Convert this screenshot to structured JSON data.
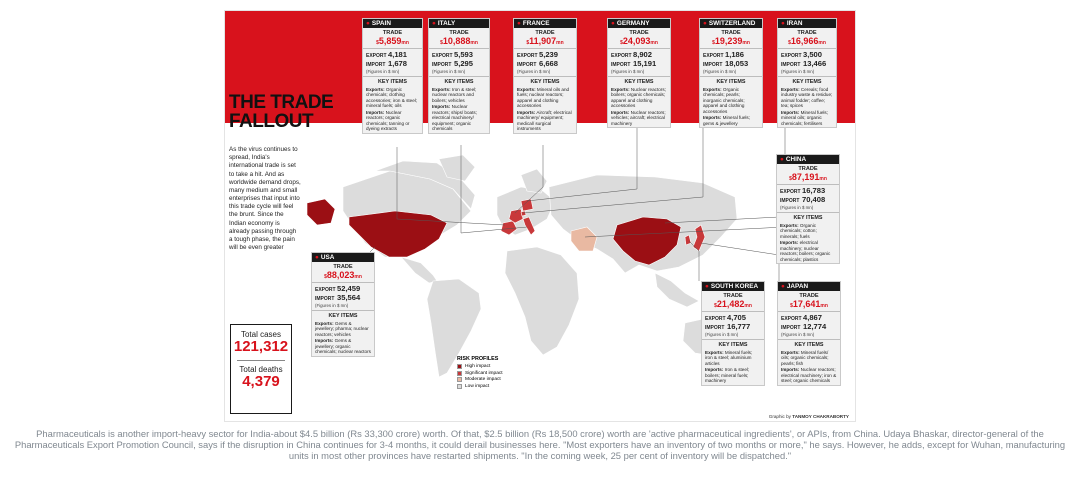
{
  "title": "THE TRADE FALLOUT",
  "intro": "As the virus continues to spread, India's international trade is set to take a hit. And as worldwide demand drops, many medium and small enterprises that input into this trade cycle will feel the brunt. Since the Indian economy is already passing through a tough phase, the pain will be even greater",
  "cases": {
    "total_cases_label": "Total cases",
    "total_cases": "121,312",
    "total_deaths_label": "Total deaths",
    "total_deaths": "4,379"
  },
  "labels": {
    "trade": "TRADE",
    "export": "EXPORT",
    "import": "IMPORT",
    "figures": "(Figures in $ mn)",
    "key_items": "KEY ITEMS",
    "exports": "Exports:",
    "imports": "Imports:",
    "unit": "mn",
    "currency": "$"
  },
  "countries": [
    {
      "name": "SPAIN",
      "trade": "5,859",
      "export": "4,181",
      "import": "1,678",
      "exports": "Organic chemicals; clothing accessories; iron & steel; mineral fuels; oils",
      "imports": "Nuclear reactors; organic chemicals; tanning or dyeing extracts"
    },
    {
      "name": "ITALY",
      "trade": "10,888",
      "export": "5,593",
      "import": "5,295",
      "exports": "Iron & steel; nuclear reactors and boilers; vehicles",
      "imports": "Nuclear reactors; ships/ boats; electrical machinery/ equipment; organic chemicals"
    },
    {
      "name": "FRANCE",
      "trade": "11,907",
      "export": "5,239",
      "import": "6,668",
      "exports": "Mineral oils and fuels; nuclear reactors; apparel and clothing accessories",
      "imports": "Aircraft; electrical machinery/ equipment; medical/ surgical instruments"
    },
    {
      "name": "GERMANY",
      "trade": "24,093",
      "export": "8,902",
      "import": "15,191",
      "exports": "Nuclear reactors; boilers; organic chemicals; apparel and clothing accessories",
      "imports": "Nuclear reactors; vehicles; aircraft; electrical machinery"
    },
    {
      "name": "SWITZERLAND",
      "trade": "19,239",
      "export": "1,186",
      "import": "18,053",
      "exports": "Organic chemicals; pearls; inorganic chemicals; apparel and clothing accessories",
      "imports": "Mineral fuels; gems & jewellery"
    },
    {
      "name": "IRAN",
      "trade": "16,966",
      "export": "3,500",
      "import": "13,466",
      "exports": "Cereals; food industry waste & residue; animal fodder; coffee; tea; spices",
      "imports": "Mineral fuels; mineral oils; organic chemicals; fertilisers"
    },
    {
      "name": "CHINA",
      "trade": "87,191",
      "export": "16,783",
      "import": "70,408",
      "exports": "Organic chemicals; cotton; minerals; fuels",
      "imports": "electrical machinery; nuclear reactors; boilers; organic chemicals; plastics"
    },
    {
      "name": "USA",
      "trade": "88,023",
      "export": "52,459",
      "import": "35,564",
      "exports": "Gems & jewellery; pharma; nuclear reactors; vehicles",
      "imports": "Gems & jewellery; organic chemicals; nuclear reactors"
    },
    {
      "name": "SOUTH KOREA",
      "trade": "21,482",
      "export": "4,705",
      "import": "16,777",
      "exports": "Mineral fuels; iron & steel; aluminium articles",
      "imports": "Iron & steel; boilers; mineral fuels; machinery"
    },
    {
      "name": "JAPAN",
      "trade": "17,641",
      "export": "4,867",
      "import": "12,774",
      "exports": "Mineral fuels/ oils; organic chemicals; pearls; fish",
      "imports": "Nuclear reactors; electrical machinery; iron & steel; organic chemicals"
    }
  ],
  "legend": {
    "title": "RISK PROFILES",
    "items": [
      {
        "label": "High impact",
        "color": "#9b0f14"
      },
      {
        "label": "Significant impact",
        "color": "#c8383a"
      },
      {
        "label": "Moderate impact",
        "color": "#e9b9a2"
      },
      {
        "label": "Low impact",
        "color": "#dcdcdc"
      }
    ]
  },
  "credit": {
    "prefix": "Graphic by",
    "name": "TANMOY CHAKRABORTY"
  },
  "caption": "Pharmaceuticals is another import-heavy sector for India-about $4.5 billion (Rs 33,300 crore) worth. Of that, $2.5 billion (Rs 18,500 crore) worth are 'active pharmaceutical ingredients', or APIs, from China. Udaya Bhaskar, director-general of the Pharmaceuticals Export Promotion Council, says if the disruption in China continues for 3-4 months, it could derail businesses here. \"Most exporters have an inventory of two months or more,\" he says. However, he adds, except for Wuhan, manufacturing units in most other provinces have restarted shipments. \"In the coming week, 25 per cent of inventory will be dispatched.\""
}
